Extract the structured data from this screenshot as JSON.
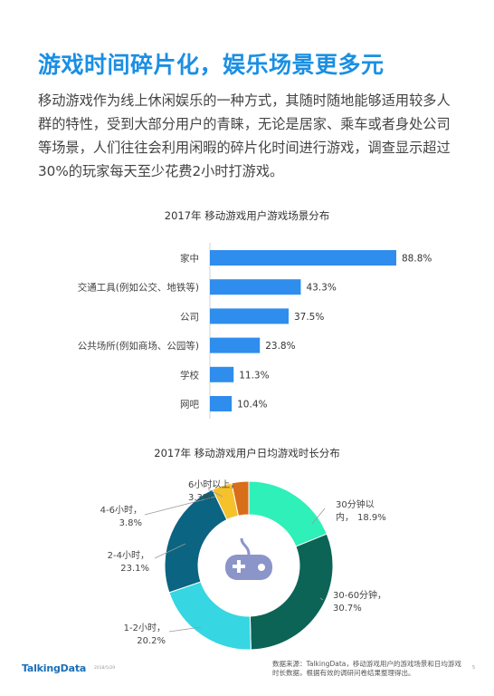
{
  "title": "游戏时间碎片化，娱乐场景更多元",
  "intro": "移动游戏作为线上休闲娱乐的一种方式，其随时随地能够适用较多人群的特性，受到大部分用户的青睐，无论是居家、乘车或者身处公司等场景，人们往往会利用闲暇的碎片化时间进行游戏，调查显示超过30%的玩家每天至少花费2小时打游戏。",
  "chart_data": [
    {
      "type": "bar",
      "orientation": "horizontal",
      "title": "2017年 移动游戏用户游戏场景分布",
      "categories": [
        "家中",
        "交通工具(例如公交、地铁等)",
        "公司",
        "公共场所(例如商场、公园等)",
        "学校",
        "网吧"
      ],
      "values": [
        88.8,
        43.3,
        37.5,
        23.8,
        11.3,
        10.4
      ],
      "value_labels": [
        "88.8%",
        "43.3%",
        "37.5%",
        "23.8%",
        "11.3%",
        "10.4%"
      ],
      "unit": "%",
      "color": "#2e8ded",
      "xlim": [
        0,
        100
      ],
      "grid": false,
      "legend": "none"
    },
    {
      "type": "pie",
      "donut": true,
      "title": "2017年 移动游戏用户日均游戏时长分布",
      "slices": [
        {
          "label": "30分钟以内",
          "label_lines": [
            "30分钟以",
            "内，"
          ],
          "value": 18.9,
          "value_label": "18.9%",
          "color": "#2ef0b8"
        },
        {
          "label": "30-60分钟",
          "label_lines": [
            "30-60分钟，"
          ],
          "value": 30.7,
          "value_label": "30.7%",
          "color": "#0b6455"
        },
        {
          "label": "1-2小时",
          "label_lines": [
            "1-2小时，"
          ],
          "value": 20.2,
          "value_label": "20.2%",
          "color": "#36d6e2"
        },
        {
          "label": "2-4小时",
          "label_lines": [
            "2-4小时，"
          ],
          "value": 23.1,
          "value_label": "23.1%",
          "color": "#0b6481"
        },
        {
          "label": "4-6小时",
          "label_lines": [
            "4-6小时，"
          ],
          "value": 3.8,
          "value_label": "3.8%",
          "color": "#f6c22b"
        },
        {
          "label": "6小时以上",
          "label_lines": [
            "6小时以上，"
          ],
          "value": 3.3,
          "value_label": "3.3%",
          "color": "#d86e1a"
        }
      ],
      "center_icon": "gamepad-icon",
      "legend": "none"
    }
  ],
  "footer": {
    "logo": "TalkingData",
    "date": "2018/5/29",
    "source": "数据来源：TalkingData，移动游戏用户的游戏场景和日均游戏时长数据，根据有效的调研问卷结果整理得出。",
    "page": "5"
  }
}
